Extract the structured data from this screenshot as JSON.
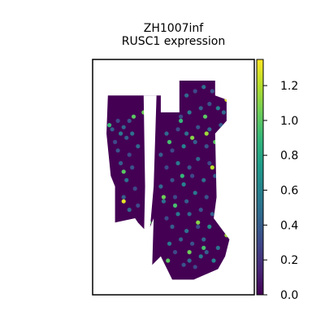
{
  "chart_data": {
    "type": "scatter",
    "title_lines": [
      "ZH1007inf",
      "RUSC1 expression"
    ],
    "xlabel": "",
    "ylabel": "",
    "axes_ticks": false,
    "color_scale": {
      "name": "viridis",
      "min": 0.0,
      "max": 1.35,
      "ticks": [
        0.0,
        0.2,
        0.4,
        0.6,
        0.8,
        1.0,
        1.2
      ],
      "tick_labels": [
        "0.0",
        "0.2",
        "0.4",
        "0.6",
        "0.8",
        "1.0",
        "1.2"
      ],
      "stops": [
        "#440154",
        "#482878",
        "#3e4989",
        "#31688e",
        "#26828e",
        "#1f9e89",
        "#35b779",
        "#6ece58",
        "#b5de2b",
        "#fde725"
      ]
    },
    "background_value": 0.0,
    "tissue_outline": [
      [
        0.05,
        0.12
      ],
      [
        0.42,
        0.12
      ],
      [
        0.42,
        0.2
      ],
      [
        0.55,
        0.2
      ],
      [
        0.55,
        0.05
      ],
      [
        0.8,
        0.05
      ],
      [
        0.8,
        0.12
      ],
      [
        0.88,
        0.14
      ],
      [
        0.88,
        0.24
      ],
      [
        0.8,
        0.3
      ],
      [
        0.81,
        0.6
      ],
      [
        0.79,
        0.7
      ],
      [
        0.9,
        0.8
      ],
      [
        0.87,
        0.88
      ],
      [
        0.82,
        0.94
      ],
      [
        0.65,
        0.99
      ],
      [
        0.5,
        0.99
      ],
      [
        0.42,
        0.88
      ],
      [
        0.36,
        0.92
      ],
      [
        0.37,
        0.7
      ],
      [
        0.34,
        0.75
      ],
      [
        0.33,
        0.77
      ],
      [
        0.26,
        0.72
      ],
      [
        0.24,
        0.7
      ],
      [
        0.1,
        0.72
      ],
      [
        0.1,
        0.55
      ],
      [
        0.07,
        0.5
      ],
      [
        0.04,
        0.3
      ]
    ],
    "gap_outline": [
      [
        0.3,
        0.12
      ],
      [
        0.39,
        0.12
      ],
      [
        0.37,
        0.55
      ],
      [
        0.33,
        0.86
      ],
      [
        0.3,
        0.86
      ],
      [
        0.31,
        0.55
      ]
    ],
    "spots": [
      {
        "x": 0.58,
        "y": 0.92,
        "v": 0.35
      },
      {
        "x": 0.62,
        "y": 0.9,
        "v": 0.45
      },
      {
        "x": 0.66,
        "y": 0.93,
        "v": 0.3
      },
      {
        "x": 0.7,
        "y": 0.88,
        "v": 0.55
      },
      {
        "x": 0.74,
        "y": 0.86,
        "v": 0.4
      },
      {
        "x": 0.79,
        "y": 0.9,
        "v": 0.6
      },
      {
        "x": 0.82,
        "y": 0.84,
        "v": 0.5
      },
      {
        "x": 0.52,
        "y": 0.86,
        "v": 0.3
      },
      {
        "x": 0.48,
        "y": 0.82,
        "v": 0.55
      },
      {
        "x": 0.56,
        "y": 0.8,
        "v": 0.4
      },
      {
        "x": 0.64,
        "y": 0.82,
        "v": 0.35
      },
      {
        "x": 0.72,
        "y": 0.8,
        "v": 0.45
      },
      {
        "x": 0.6,
        "y": 0.76,
        "v": 0.5
      },
      {
        "x": 0.68,
        "y": 0.74,
        "v": 0.3
      },
      {
        "x": 0.76,
        "y": 0.74,
        "v": 0.65
      },
      {
        "x": 0.5,
        "y": 0.74,
        "v": 0.4
      },
      {
        "x": 0.46,
        "y": 0.7,
        "v": 0.3
      },
      {
        "x": 0.54,
        "y": 0.68,
        "v": 0.55
      },
      {
        "x": 0.62,
        "y": 0.68,
        "v": 0.45
      },
      {
        "x": 0.7,
        "y": 0.66,
        "v": 0.35
      },
      {
        "x": 0.78,
        "y": 0.68,
        "v": 0.4
      },
      {
        "x": 0.44,
        "y": 0.62,
        "v": 0.5
      },
      {
        "x": 0.52,
        "y": 0.6,
        "v": 0.3
      },
      {
        "x": 0.6,
        "y": 0.62,
        "v": 0.4
      },
      {
        "x": 0.66,
        "y": 0.58,
        "v": 0.55
      },
      {
        "x": 0.74,
        "y": 0.6,
        "v": 0.35
      },
      {
        "x": 0.83,
        "y": 0.58,
        "v": 0.45
      },
      {
        "x": 0.86,
        "y": 0.52,
        "v": 0.3
      },
      {
        "x": 0.42,
        "y": 0.55,
        "v": 0.45
      },
      {
        "x": 0.5,
        "y": 0.52,
        "v": 0.35
      },
      {
        "x": 0.58,
        "y": 0.54,
        "v": 0.6
      },
      {
        "x": 0.64,
        "y": 0.5,
        "v": 0.3
      },
      {
        "x": 0.72,
        "y": 0.52,
        "v": 0.5
      },
      {
        "x": 0.8,
        "y": 0.5,
        "v": 0.4
      },
      {
        "x": 0.46,
        "y": 0.46,
        "v": 0.3
      },
      {
        "x": 0.54,
        "y": 0.44,
        "v": 0.55
      },
      {
        "x": 0.62,
        "y": 0.46,
        "v": 0.35
      },
      {
        "x": 0.68,
        "y": 0.42,
        "v": 0.45
      },
      {
        "x": 0.76,
        "y": 0.44,
        "v": 0.3
      },
      {
        "x": 0.84,
        "y": 0.44,
        "v": 0.5
      },
      {
        "x": 0.42,
        "y": 0.4,
        "v": 0.4
      },
      {
        "x": 0.5,
        "y": 0.38,
        "v": 0.3
      },
      {
        "x": 0.58,
        "y": 0.36,
        "v": 0.6
      },
      {
        "x": 0.66,
        "y": 0.34,
        "v": 0.4
      },
      {
        "x": 0.74,
        "y": 0.36,
        "v": 0.35
      },
      {
        "x": 0.82,
        "y": 0.36,
        "v": 0.55
      },
      {
        "x": 0.46,
        "y": 0.3,
        "v": 0.45
      },
      {
        "x": 0.54,
        "y": 0.28,
        "v": 0.3
      },
      {
        "x": 0.6,
        "y": 0.3,
        "v": 0.5
      },
      {
        "x": 0.68,
        "y": 0.27,
        "v": 0.35
      },
      {
        "x": 0.76,
        "y": 0.28,
        "v": 0.45
      },
      {
        "x": 0.84,
        "y": 0.26,
        "v": 0.4
      },
      {
        "x": 0.56,
        "y": 0.22,
        "v": 0.3
      },
      {
        "x": 0.62,
        "y": 0.2,
        "v": 0.55
      },
      {
        "x": 0.7,
        "y": 0.18,
        "v": 0.4
      },
      {
        "x": 0.76,
        "y": 0.16,
        "v": 0.35
      },
      {
        "x": 0.82,
        "y": 0.18,
        "v": 0.6
      },
      {
        "x": 0.6,
        "y": 0.12,
        "v": 0.45
      },
      {
        "x": 0.66,
        "y": 0.1,
        "v": 0.3
      },
      {
        "x": 0.72,
        "y": 0.08,
        "v": 0.5
      },
      {
        "x": 0.78,
        "y": 0.1,
        "v": 0.35
      },
      {
        "x": 0.86,
        "y": 0.2,
        "v": 0.45
      },
      {
        "x": 0.08,
        "y": 0.28,
        "v": 0.4
      },
      {
        "x": 0.12,
        "y": 0.24,
        "v": 0.3
      },
      {
        "x": 0.16,
        "y": 0.27,
        "v": 0.45
      },
      {
        "x": 0.2,
        "y": 0.24,
        "v": 0.35
      },
      {
        "x": 0.14,
        "y": 0.3,
        "v": 0.55
      },
      {
        "x": 0.1,
        "y": 0.34,
        "v": 0.3
      },
      {
        "x": 0.18,
        "y": 0.32,
        "v": 0.4
      },
      {
        "x": 0.22,
        "y": 0.3,
        "v": 0.5
      },
      {
        "x": 0.12,
        "y": 0.38,
        "v": 0.35
      },
      {
        "x": 0.2,
        "y": 0.4,
        "v": 0.3
      },
      {
        "x": 0.26,
        "y": 0.36,
        "v": 0.45
      },
      {
        "x": 0.14,
        "y": 0.44,
        "v": 0.4
      },
      {
        "x": 0.22,
        "y": 0.46,
        "v": 0.35
      },
      {
        "x": 0.18,
        "y": 0.52,
        "v": 0.5
      },
      {
        "x": 0.24,
        "y": 0.56,
        "v": 0.3
      },
      {
        "x": 0.16,
        "y": 0.6,
        "v": 0.4
      },
      {
        "x": 0.2,
        "y": 0.66,
        "v": 0.45
      },
      {
        "x": 0.26,
        "y": 0.64,
        "v": 0.3
      },
      {
        "x": 0.88,
        "y": 0.78,
        "v": 1.15
      },
      {
        "x": 0.62,
        "y": 0.86,
        "v": 1.05
      },
      {
        "x": 0.72,
        "y": 0.84,
        "v": 0.95
      },
      {
        "x": 0.47,
        "y": 0.9,
        "v": 1.0
      },
      {
        "x": 0.68,
        "y": 0.72,
        "v": 1.1
      },
      {
        "x": 0.52,
        "y": 0.64,
        "v": 0.95
      },
      {
        "x": 0.44,
        "y": 0.6,
        "v": 1.05
      },
      {
        "x": 0.78,
        "y": 0.46,
        "v": 1.2
      },
      {
        "x": 0.48,
        "y": 0.34,
        "v": 0.95
      },
      {
        "x": 0.8,
        "y": 0.34,
        "v": 1.0
      },
      {
        "x": 0.64,
        "y": 0.32,
        "v": 1.1
      },
      {
        "x": 0.56,
        "y": 0.24,
        "v": 0.9
      },
      {
        "x": 0.73,
        "y": 0.22,
        "v": 1.0
      },
      {
        "x": 0.88,
        "y": 0.14,
        "v": 1.3
      },
      {
        "x": 0.84,
        "y": 0.08,
        "v": 0.95
      },
      {
        "x": 0.23,
        "y": 0.22,
        "v": 1.0
      },
      {
        "x": 0.3,
        "y": 0.2,
        "v": 1.05
      },
      {
        "x": 0.16,
        "y": 0.48,
        "v": 1.0
      },
      {
        "x": 0.06,
        "y": 0.26,
        "v": 0.9
      },
      {
        "x": 0.34,
        "y": 0.72,
        "v": 1.0
      },
      {
        "x": 0.86,
        "y": 0.38,
        "v": 1.2
      },
      {
        "x": 0.74,
        "y": 0.3,
        "v": 1.15
      },
      {
        "x": 0.16,
        "y": 0.62,
        "v": 1.3
      },
      {
        "x": 0.57,
        "y": 0.5,
        "v": 0.9
      },
      {
        "x": 0.41,
        "y": 0.94,
        "v": 0.9
      },
      {
        "x": 0.36,
        "y": 0.98,
        "v": 1.0
      }
    ]
  }
}
